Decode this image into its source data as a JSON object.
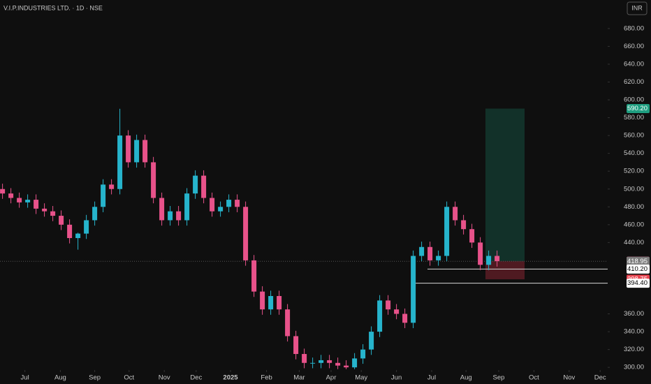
{
  "header": {
    "title": "V.I.P.INDUSTRIES LTD. · 1D · NSE",
    "currency": "INR"
  },
  "chart_data": {
    "type": "candlestick",
    "up_color": "#26b4cc",
    "down_color": "#e8528a",
    "open": [
      500,
      495,
      490,
      485,
      488,
      478,
      475,
      470,
      460,
      445,
      450,
      465,
      480,
      505,
      500,
      560,
      530,
      555,
      530,
      490,
      465,
      475,
      465,
      495,
      515,
      490,
      475,
      480,
      488,
      480,
      420,
      385,
      365,
      380,
      365,
      335,
      315,
      305,
      305,
      308,
      305,
      302,
      300,
      310,
      320,
      340,
      375,
      365,
      360,
      350,
      425,
      435,
      420,
      425,
      480,
      465,
      455,
      440,
      415,
      425
    ],
    "high": [
      506,
      501,
      496,
      494,
      494,
      484,
      481,
      476,
      466,
      451,
      471,
      486,
      511,
      511,
      590,
      566,
      561,
      561,
      536,
      496,
      481,
      481,
      501,
      521,
      521,
      496,
      486,
      494,
      494,
      486,
      426,
      391,
      386,
      386,
      371,
      341,
      321,
      311,
      314,
      314,
      311,
      308,
      316,
      326,
      346,
      381,
      381,
      371,
      366,
      431,
      441,
      441,
      431,
      486,
      486,
      471,
      461,
      446,
      431,
      431
    ],
    "low": [
      489,
      484,
      479,
      479,
      472,
      469,
      464,
      454,
      439,
      432,
      444,
      459,
      474,
      494,
      494,
      524,
      524,
      524,
      484,
      459,
      459,
      459,
      459,
      489,
      484,
      469,
      469,
      474,
      474,
      414,
      379,
      359,
      359,
      359,
      329,
      309,
      299,
      299,
      299,
      299,
      298,
      298,
      298,
      304,
      314,
      334,
      359,
      354,
      344,
      344,
      419,
      414,
      414,
      419,
      459,
      449,
      434,
      409,
      409,
      413
    ],
    "close": [
      495,
      490,
      485,
      488,
      478,
      475,
      470,
      460,
      445,
      450,
      465,
      480,
      505,
      500,
      560,
      530,
      555,
      530,
      490,
      465,
      475,
      465,
      495,
      515,
      490,
      475,
      480,
      488,
      480,
      420,
      385,
      365,
      380,
      365,
      335,
      315,
      305,
      305,
      308,
      305,
      302,
      300,
      310,
      320,
      340,
      375,
      365,
      360,
      350,
      425,
      435,
      420,
      425,
      480,
      465,
      455,
      440,
      415,
      425,
      419.1
    ],
    "xlim": [
      -0.3,
      72.2
    ],
    "ylim": [
      297,
      712
    ],
    "xticks": [
      {
        "value": 2.67,
        "label": "Jul"
      },
      {
        "value": 6.9,
        "label": "Aug"
      },
      {
        "value": 11,
        "label": "Sep"
      },
      {
        "value": 15.1,
        "label": "Oct"
      },
      {
        "value": 19.3,
        "label": "Nov"
      },
      {
        "value": 23.1,
        "label": "Dec"
      },
      {
        "value": 27.2,
        "label": "2025"
      },
      {
        "value": 31.5,
        "label": "Feb"
      },
      {
        "value": 35.4,
        "label": "Mar"
      },
      {
        "value": 39.2,
        "label": "Apr"
      },
      {
        "value": 42.8,
        "label": "May"
      },
      {
        "value": 47,
        "label": "Jun"
      },
      {
        "value": 51.2,
        "label": "Jul"
      },
      {
        "value": 55.3,
        "label": "Aug"
      },
      {
        "value": 59.2,
        "label": "Sep"
      },
      {
        "value": 63.4,
        "label": "Oct"
      },
      {
        "value": 67.6,
        "label": "Nov"
      },
      {
        "value": 71.3,
        "label": "Dec"
      }
    ],
    "yticks": [
      {
        "value": 300,
        "label": "300.00"
      },
      {
        "value": 320,
        "label": "320.00"
      },
      {
        "value": 340,
        "label": "340.00"
      },
      {
        "value": 360,
        "label": "360.00"
      },
      {
        "value": 440,
        "label": "440.00"
      },
      {
        "value": 460,
        "label": "460.00"
      },
      {
        "value": 480,
        "label": "480.00"
      },
      {
        "value": 500,
        "label": "500.00"
      },
      {
        "value": 520,
        "label": "520.00"
      },
      {
        "value": 540,
        "label": "540.00"
      },
      {
        "value": 560,
        "label": "560.00"
      },
      {
        "value": 580,
        "label": "580.00"
      },
      {
        "value": 600,
        "label": "600.00"
      },
      {
        "value": 620,
        "label": "620.00"
      },
      {
        "value": 640,
        "label": "640.00"
      },
      {
        "value": 660,
        "label": "660.00"
      },
      {
        "value": 680,
        "label": "680.00"
      }
    ],
    "price_labels": [
      {
        "value": 590.2,
        "label": "590.20",
        "color": "#1f9e80",
        "text_color": "#ffffff"
      },
      {
        "value": 419.1,
        "label": "419.10",
        "color": "#e8528a",
        "text_color": "#ffffff"
      },
      {
        "value": 418.95,
        "label": "418.95",
        "color": "#7a7a7a",
        "text_color": "#ffffff"
      },
      {
        "value": 410.2,
        "label": "410.20",
        "color": "#ffffff",
        "text_color": "#000000"
      },
      {
        "value": 398.75,
        "label": "398.75",
        "color": "#e8434f",
        "text_color": "#ffffff"
      },
      {
        "value": 394.4,
        "label": "394.40",
        "color": "#ffffff",
        "text_color": "#000000"
      }
    ],
    "position": {
      "entry": 419.1,
      "target": 590.2,
      "stop": 398.75
    },
    "levels": [
      410.2,
      394.4
    ]
  }
}
